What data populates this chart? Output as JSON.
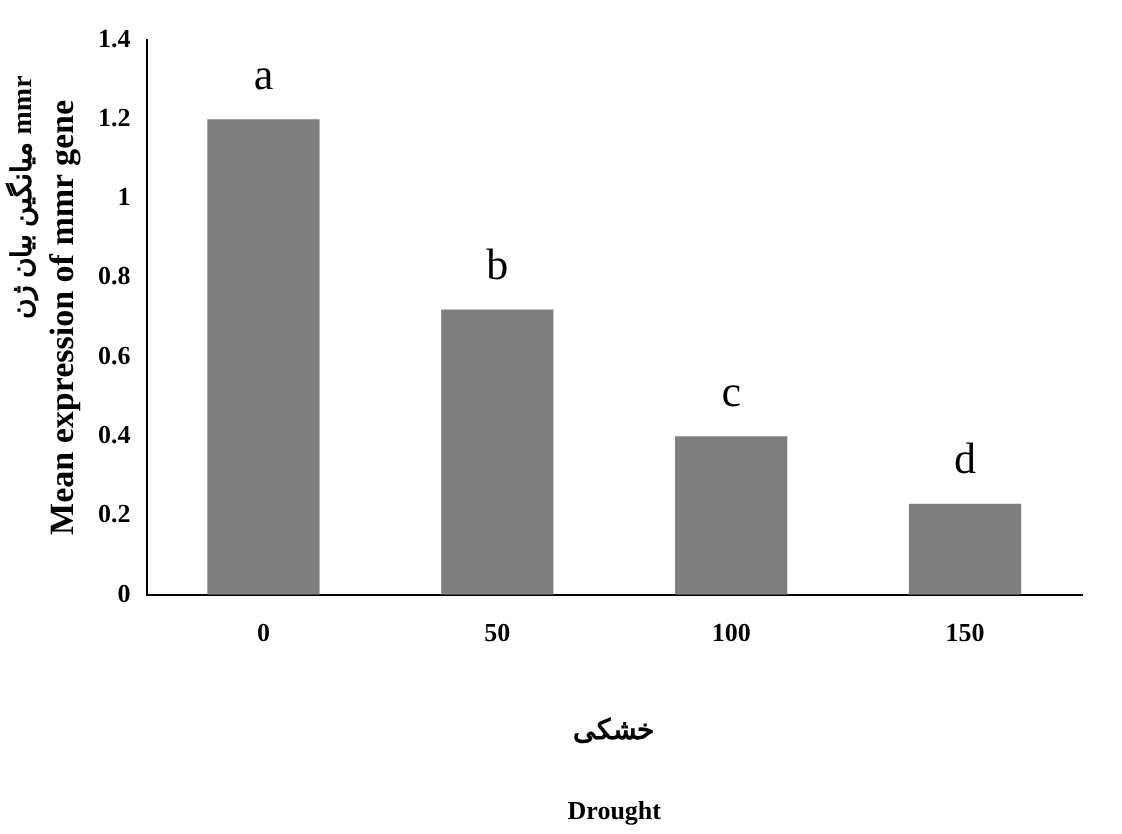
{
  "chart_data": {
    "type": "bar",
    "xlabel": "خشکی",
    "ylabel": "Mean expression of mmr gene",
    "categories": [
      "0",
      "50",
      "100",
      "150"
    ],
    "values": [
      1.2,
      0.72,
      0.4,
      0.23
    ],
    "color": "#7f7f7f",
    "ylim": [
      0,
      1.4
    ],
    "yticks": [
      0,
      0.2,
      0.4,
      0.6,
      0.8,
      1,
      1.2,
      1.4
    ],
    "grid": false,
    "legend": false,
    "annotations": [
      {
        "text": "a",
        "x": "0",
        "y": 1.2
      },
      {
        "text": "b",
        "x": "50",
        "y": 0.72
      },
      {
        "text": "c",
        "x": "100",
        "y": 0.4
      },
      {
        "text": "d",
        "x": "150",
        "y": 0.23
      },
      "میانگین بیان ژن mmr",
      "Drought"
    ]
  }
}
